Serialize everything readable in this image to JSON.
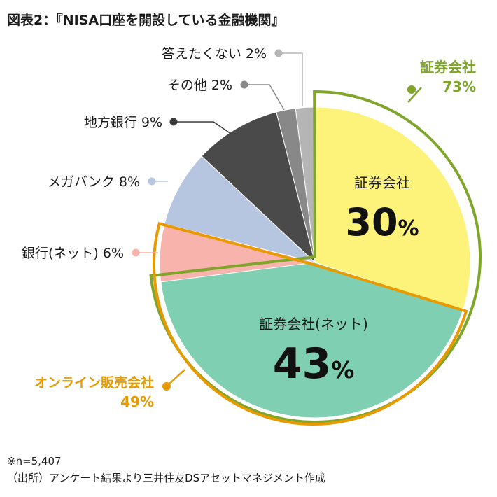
{
  "title": "図表2：『NISA口座を開設している金融機関』",
  "notes": {
    "sample": "※n=5,407",
    "source": "（出所）アンケート結果より三井住友DSアセットマネジメント作成"
  },
  "colors": {
    "securities": "#fdf37a",
    "securities_net": "#7fcfb3",
    "bank_net": "#f8b3ad",
    "megabank": "#b6c6e0",
    "regional_bank": "#4a4a4a",
    "other": "#888888",
    "no_answer": "#b5b5b5",
    "group_securities": "#7fa62a",
    "group_online": "#e89a00",
    "leader": "#555555"
  },
  "chart_data": {
    "type": "pie",
    "start_angle_deg": 0,
    "direction": "clockwise",
    "slices": [
      {
        "key": "securities",
        "label": "証券会社",
        "value_label": "30%",
        "value": 30,
        "color": "#fdf37a",
        "inside": true
      },
      {
        "key": "securities_net",
        "label": "証券会社(ネット)",
        "value_label": "43%",
        "value": 43,
        "color": "#7fcfb3",
        "inside": true
      },
      {
        "key": "bank_net",
        "label": "銀行(ネット) 6%",
        "value": 6,
        "color": "#f8b3ad",
        "inside": false
      },
      {
        "key": "megabank",
        "label": "メガバンク 8%",
        "value": 8,
        "color": "#b6c6e0",
        "inside": false
      },
      {
        "key": "regional_bank",
        "label": "地方銀行 9%",
        "value": 9,
        "color": "#4a4a4a",
        "inside": false
      },
      {
        "key": "other",
        "label": "その他 2%",
        "value": 2,
        "color": "#888888",
        "inside": false
      },
      {
        "key": "no_answer",
        "label": "答えたくない 2%",
        "value": 2,
        "color": "#b5b5b5",
        "inside": false
      }
    ],
    "groups": [
      {
        "key": "group_securities",
        "label": "証券会社",
        "value_label": "73%",
        "value": 73,
        "members": [
          "securities",
          "securities_net"
        ],
        "color": "#7fa62a"
      },
      {
        "key": "group_online",
        "label": "オンライン販売会社",
        "value_label": "49%",
        "value": 49,
        "members": [
          "securities_net",
          "bank_net"
        ],
        "color": "#e89a00"
      }
    ]
  }
}
